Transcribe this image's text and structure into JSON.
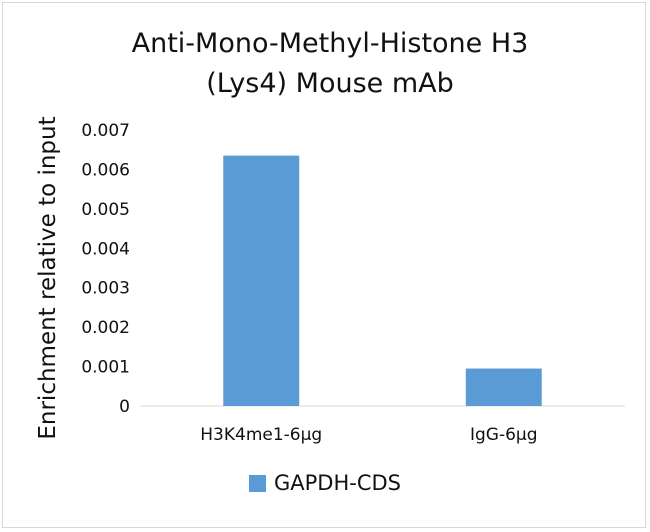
{
  "chart_data": {
    "type": "bar",
    "title_line1": "Anti-Mono-Methyl-Histone H3",
    "title_line2": "(Lys4) Mouse mAb",
    "ylabel": "Enrichment relative to input",
    "xlabel": "",
    "categories": [
      "H3K4me1-6μg",
      "IgG-6μg"
    ],
    "series": [
      {
        "name": "GAPDH-CDS",
        "values": [
          0.00635,
          0.00095
        ],
        "color": "#5b9bd5"
      }
    ],
    "ylim": [
      0,
      0.007
    ],
    "yticks": [
      "0",
      "0.001",
      "0.002",
      "0.003",
      "0.004",
      "0.005",
      "0.006",
      "0.007"
    ],
    "grid": false,
    "legend_position": "bottom"
  }
}
